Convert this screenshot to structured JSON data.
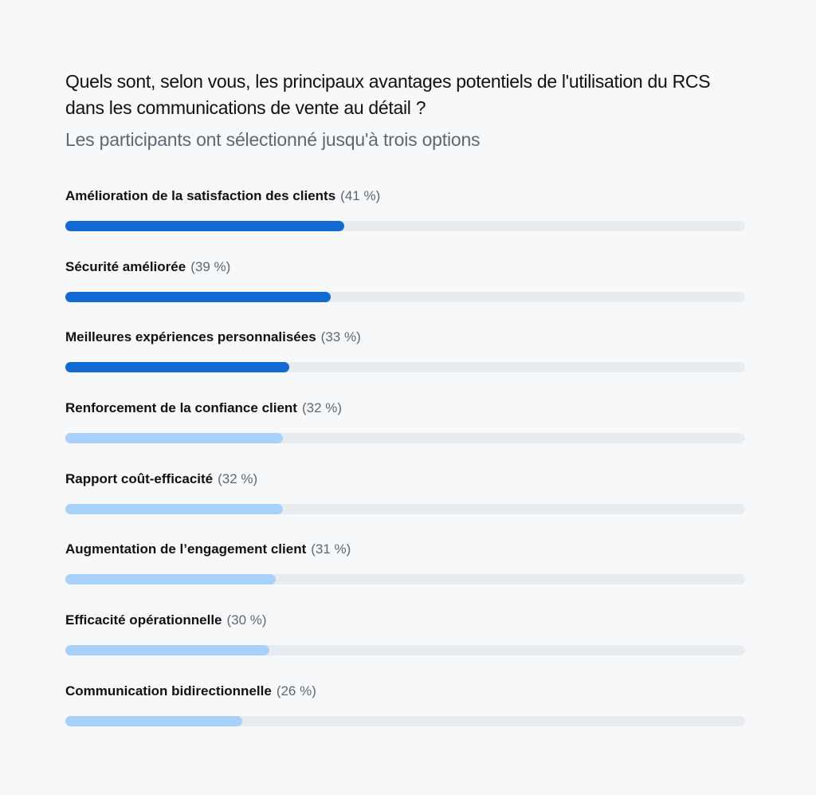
{
  "chart_data": {
    "type": "bar",
    "orientation": "horizontal",
    "title": "Quels sont, selon vous, les principaux avantages potentiels de l'utilisation du RCS dans les communications de vente au détail ?",
    "subtitle": "Les participants ont sélectionné jusqu'à trois options",
    "xlim": [
      0,
      100
    ],
    "grid": false,
    "categories": [
      "Amélioration de la satisfaction des clients",
      "Sécurité améliorée",
      "Meilleures expériences personnalisées",
      "Renforcement de la confiance client",
      "Rapport coût-efficacité",
      "Augmentation de l’engagement client",
      "Efficacité opérationnelle",
      "Communication bidirectionnelle"
    ],
    "values": [
      41,
      39,
      33,
      32,
      32,
      31,
      30,
      26
    ],
    "value_labels": [
      "(41 %)",
      "(39 %)",
      "(33 %)",
      "(32 %)",
      "(32 %)",
      "(31 %)",
      "(30 %)",
      "(26 %)"
    ],
    "bar_colors": [
      "#1169d4",
      "#1169d4",
      "#1169d4",
      "#a8d2fb",
      "#a8d2fb",
      "#a8d2fb",
      "#a8d2fb",
      "#a8d2fb"
    ],
    "track_color": "#e9ecef"
  }
}
